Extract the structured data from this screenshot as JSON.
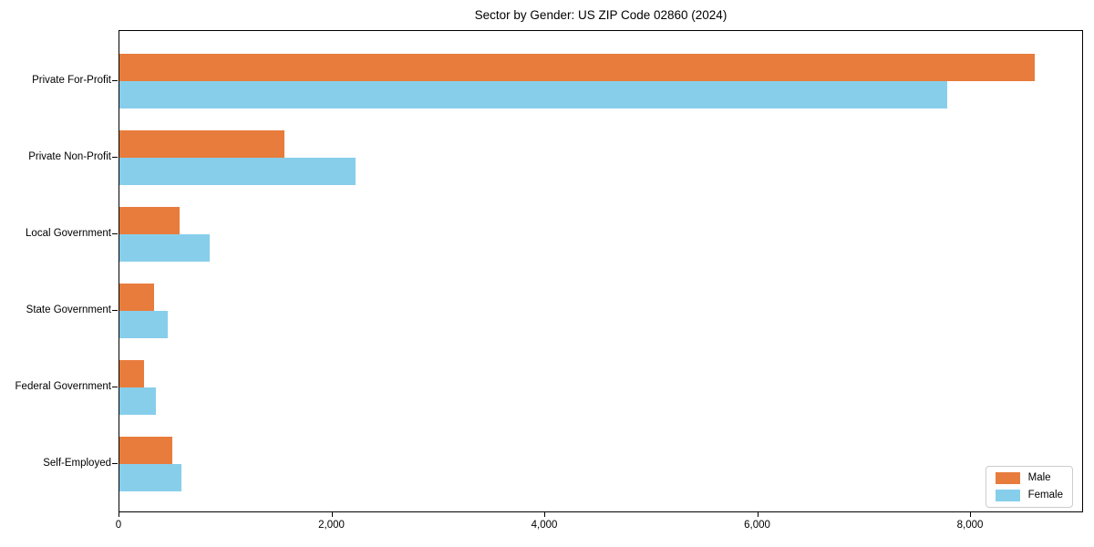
{
  "chart_data": {
    "type": "bar",
    "orientation": "horizontal",
    "title": "Sector by Gender: US ZIP Code 02860 (2024)",
    "categories": [
      "Private For-Profit",
      "Private Non-Profit",
      "Local Government",
      "State Government",
      "Federal Government",
      "Self-Employed"
    ],
    "series": [
      {
        "name": "Male",
        "color": "#E87C3C",
        "values": [
          8600,
          1550,
          565,
          325,
          230,
          500
        ]
      },
      {
        "name": "Female",
        "color": "#87CEEB",
        "values": [
          7780,
          2220,
          850,
          455,
          340,
          585
        ]
      }
    ],
    "xlim": [
      0,
      9062
    ],
    "xticks": [
      0,
      2000,
      4000,
      6000,
      8000
    ],
    "xtick_labels": [
      "0",
      "2,000",
      "4,000",
      "6,000",
      "8,000"
    ],
    "xlabel": "",
    "ylabel": "",
    "grid": false,
    "legend": {
      "position": "lower right",
      "entries": [
        "Male",
        "Female"
      ]
    },
    "background_color": "#ffffff",
    "spine_color": "#000000"
  }
}
